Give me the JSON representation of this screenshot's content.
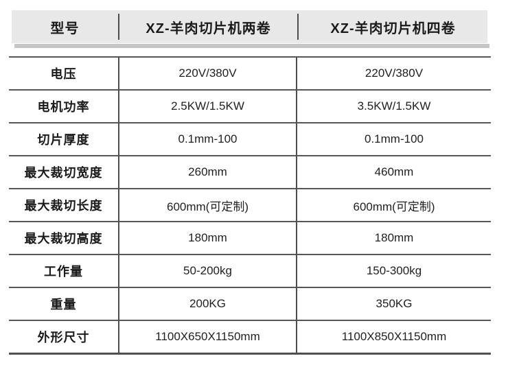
{
  "colors": {
    "page_background": "#ffffff",
    "header_background": "#e8e8e8",
    "header_shadow": "#c6c6c6",
    "border": "#4f4f4f",
    "text": "#1d1d1d"
  },
  "table": {
    "columns": [
      "型号",
      "XZ-羊肉切片机两卷",
      "XZ-羊肉切片机四卷"
    ],
    "rows": [
      [
        "电压",
        "220V/380V",
        "220V/380V"
      ],
      [
        "电机功率",
        "2.5KW/1.5KW",
        "3.5KW/1.5KW"
      ],
      [
        "切片厚度",
        "0.1mm-100",
        "0.1mm-100"
      ],
      [
        "最大裁切宽度",
        "260mm",
        "460mm"
      ],
      [
        "最大裁切长度",
        "600mm(可定制)",
        "600mm(可定制)"
      ],
      [
        "最大裁切高度",
        "180mm",
        "180mm"
      ],
      [
        "工作量",
        "50-200kg",
        "150-300kg"
      ],
      [
        "重量",
        "200KG",
        "350KG"
      ],
      [
        "外形尺寸",
        "1100X650X1150mm",
        "1100X850X1150mm"
      ]
    ]
  }
}
